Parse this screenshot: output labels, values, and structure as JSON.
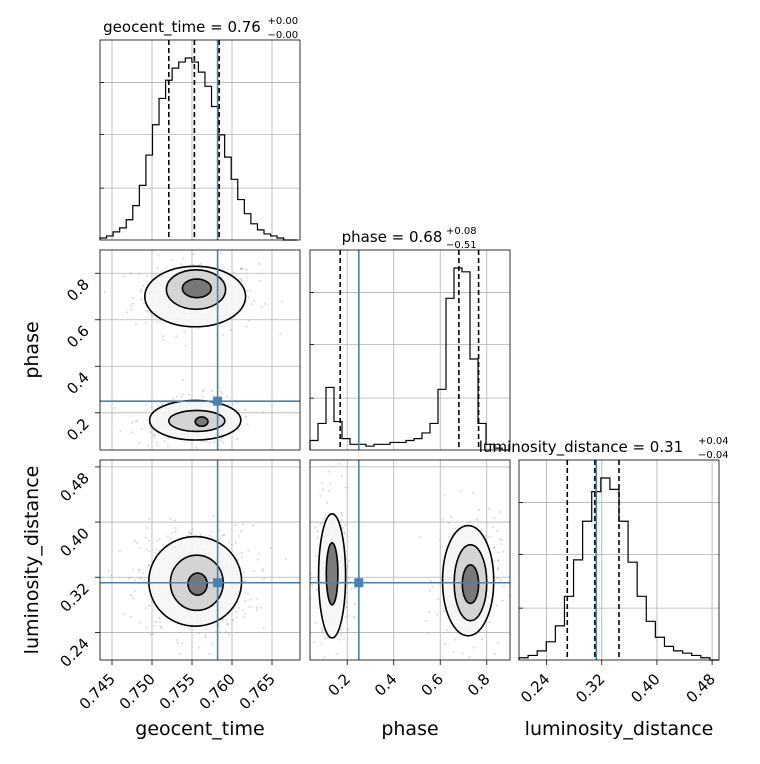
{
  "chart_data": {
    "type": "corner",
    "parameters": [
      "geocent_time",
      "phase",
      "luminosity_distance"
    ],
    "truths": {
      "geocent_time": 0.7582,
      "phase": 0.25,
      "luminosity_distance": 0.312
    },
    "ranges": {
      "geocent_time": [
        0.7435,
        0.7685
      ],
      "phase": [
        0.04,
        0.9
      ],
      "luminosity_distance": [
        0.2,
        0.49
      ]
    },
    "ticks": {
      "geocent_time": [
        0.745,
        0.75,
        0.755,
        0.76,
        0.765
      ],
      "phase": [
        0.2,
        0.4,
        0.6,
        0.8
      ],
      "luminosity_distance": [
        0.24,
        0.32,
        0.4,
        0.48
      ]
    },
    "tick_labels": {
      "geocent_time": [
        "0.745",
        "0.750",
        "0.755",
        "0.760",
        "0.765"
      ],
      "phase": [
        "0.2",
        "0.4",
        "0.6",
        "0.8"
      ],
      "luminosity_distance": [
        "0.24",
        "0.32",
        "0.40",
        "0.48"
      ]
    },
    "titles": [
      {
        "param": "geocent_time",
        "name": "geocent_time",
        "median": "0.76",
        "plus": "+0.00",
        "minus": "−0.00"
      },
      {
        "param": "phase",
        "name": "phase",
        "median": "0.68",
        "plus": "+0.08",
        "minus": "−0.51"
      },
      {
        "param": "luminosity_distance",
        "name": "luminosity_distance",
        "median": "0.31",
        "plus": "+0.04",
        "minus": "−0.04"
      }
    ],
    "histograms": {
      "geocent_time": {
        "edges": [
          0.7435,
          0.7681
        ],
        "counts": [
          1,
          2,
          4,
          6,
          10,
          17,
          27,
          42,
          57,
          70,
          79,
          85,
          88,
          90,
          88,
          83,
          76,
          66,
          52,
          41,
          30,
          20,
          13,
          8,
          5,
          3,
          2,
          1,
          0,
          0
        ],
        "quantiles": [
          0.7521,
          0.7553,
          0.7584
        ]
      },
      "phase": {
        "edges": [
          0.04,
          0.9
        ],
        "counts": [
          5,
          14,
          33,
          15,
          6,
          3,
          3,
          2,
          3,
          3,
          4,
          4,
          5,
          6,
          9,
          14,
          32,
          80,
          96,
          94,
          48,
          14,
          3,
          1,
          0
        ],
        "quantiles": [
          0.17,
          0.68,
          0.765
        ]
      },
      "luminosity_distance": {
        "edges": [
          0.2,
          0.49
        ],
        "counts": [
          1,
          2,
          4,
          8,
          15,
          28,
          44,
          61,
          74,
          80,
          75,
          61,
          43,
          28,
          17,
          10,
          6,
          4,
          3,
          2,
          1,
          0
        ],
        "quantiles": [
          0.27,
          0.31,
          0.345
        ]
      }
    },
    "contours": {
      "phase_vs_geocent_time": [
        {
          "level": "inner",
          "cx": 0.7556,
          "cy": 0.735,
          "rx": 0.0018,
          "ry": 0.04
        },
        {
          "level": "mid",
          "cx": 0.7555,
          "cy": 0.73,
          "rx": 0.0037,
          "ry": 0.085
        },
        {
          "level": "outer",
          "cx": 0.7554,
          "cy": 0.7,
          "rx": 0.0063,
          "ry": 0.13
        },
        {
          "level": "inner",
          "cx": 0.7562,
          "cy": 0.162,
          "rx": 0.0008,
          "ry": 0.02
        },
        {
          "level": "mid",
          "cx": 0.7556,
          "cy": 0.165,
          "rx": 0.0035,
          "ry": 0.045
        },
        {
          "level": "outer",
          "cx": 0.7554,
          "cy": 0.168,
          "rx": 0.0057,
          "ry": 0.085
        }
      ],
      "luminosity_distance_vs_geocent_time": [
        {
          "level": "inner",
          "cx": 0.7557,
          "cy": 0.31,
          "rx": 0.0012,
          "ry": 0.016
        },
        {
          "level": "mid",
          "cx": 0.7556,
          "cy": 0.312,
          "rx": 0.0033,
          "ry": 0.04
        },
        {
          "level": "outer",
          "cx": 0.7554,
          "cy": 0.314,
          "rx": 0.0058,
          "ry": 0.065
        }
      ],
      "luminosity_distance_vs_phase": [
        {
          "level": "inner",
          "cx": 0.135,
          "cy": 0.325,
          "rx": 0.025,
          "ry": 0.045
        },
        {
          "level": "outer",
          "cx": 0.135,
          "cy": 0.322,
          "rx": 0.058,
          "ry": 0.09
        },
        {
          "level": "inner",
          "cx": 0.73,
          "cy": 0.31,
          "rx": 0.035,
          "ry": 0.028
        },
        {
          "level": "mid",
          "cx": 0.73,
          "cy": 0.312,
          "rx": 0.07,
          "ry": 0.055
        },
        {
          "level": "outer",
          "cx": 0.72,
          "cy": 0.315,
          "rx": 0.11,
          "ry": 0.08
        }
      ]
    },
    "colors": {
      "truth": "#4682b4",
      "lines": "#000000",
      "density": "#808080",
      "grid": "#b0b0b0"
    }
  }
}
